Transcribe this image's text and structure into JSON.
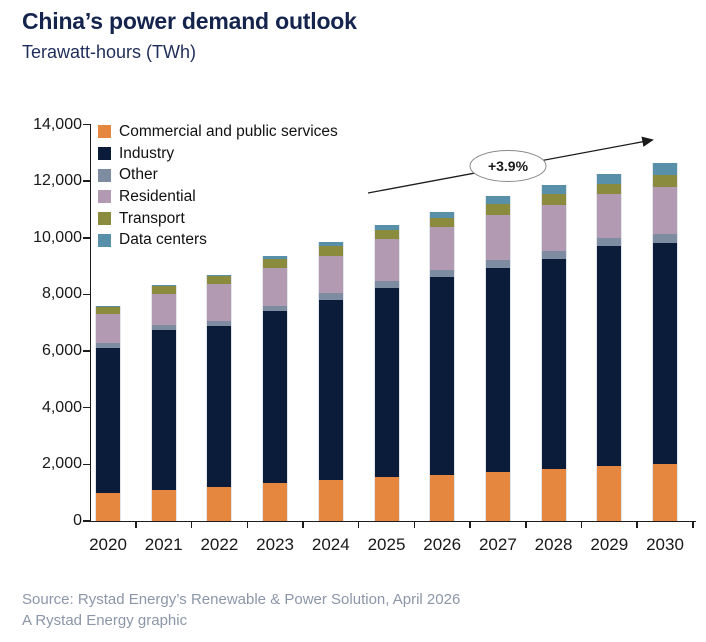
{
  "header": {
    "title": "China’s power demand outlook",
    "subtitle": "Terawatt-hours (TWh)"
  },
  "chart_data": {
    "type": "bar",
    "stacked": true,
    "title": "China’s power demand outlook",
    "subtitle": "Terawatt-hours (TWh)",
    "unit": "TWh",
    "categories": [
      "2020",
      "2021",
      "2022",
      "2023",
      "2024",
      "2025",
      "2026",
      "2027",
      "2028",
      "2029",
      "2030"
    ],
    "series": [
      {
        "name": "Commercial and public services",
        "color": "#e6873f",
        "values": [
          1000,
          1100,
          1190,
          1350,
          1450,
          1540,
          1620,
          1740,
          1840,
          1940,
          2000
        ]
      },
      {
        "name": "Industry",
        "color": "#0b1c3a",
        "values": [
          5100,
          5650,
          5700,
          6060,
          6350,
          6690,
          6980,
          7200,
          7400,
          7760,
          7800
        ]
      },
      {
        "name": "Other",
        "color": "#7d8ca0",
        "values": [
          175,
          175,
          175,
          175,
          235,
          260,
          260,
          270,
          305,
          305,
          330
        ]
      },
      {
        "name": "Residential",
        "color": "#b19ab2",
        "values": [
          1020,
          1100,
          1300,
          1350,
          1330,
          1460,
          1530,
          1610,
          1610,
          1530,
          1650
        ]
      },
      {
        "name": "Transport",
        "color": "#8b8b3d",
        "values": [
          250,
          260,
          280,
          320,
          330,
          310,
          310,
          390,
          390,
          380,
          450
        ]
      },
      {
        "name": "Data centers",
        "color": "#5890a9",
        "values": [
          50,
          55,
          60,
          90,
          170,
          210,
          230,
          260,
          320,
          350,
          400
        ]
      }
    ],
    "ylim": [
      0,
      14000
    ],
    "ytick_step": 2000,
    "ytick_labels": [
      "0",
      "2,000",
      "4,000",
      "6,000",
      "8,000",
      "10,000",
      "12,000",
      "14,000"
    ],
    "grid": false,
    "legend_position": "top-left-inside",
    "annotation": {
      "label": "+3.9%"
    }
  },
  "footer": {
    "source": "Source: Rystad Energy’s Renewable & Power Solution, April 2026",
    "credit": "A Rystad Energy graphic"
  }
}
